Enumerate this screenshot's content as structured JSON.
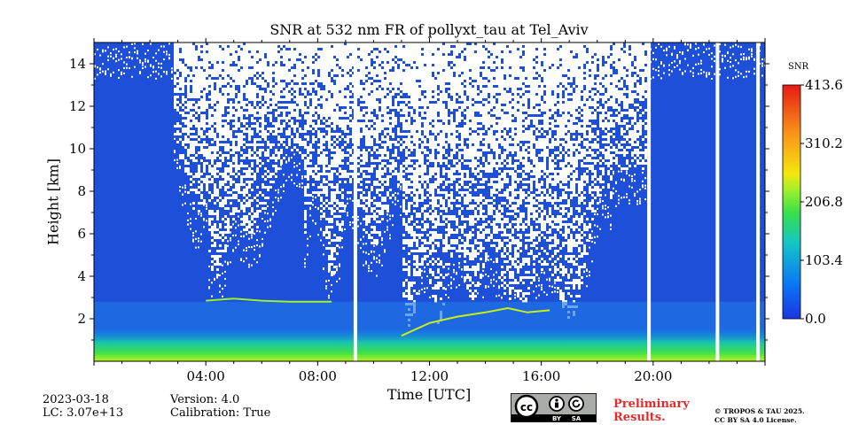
{
  "chart_data": {
    "type": "heatmap",
    "title": "SNR at 532 nm FR of pollyxt_tau at Tel_Aviv",
    "xlabel": "Time [UTC]",
    "ylabel": "Height [km]",
    "x_range_hours": [
      0,
      24
    ],
    "y_range_km": [
      0,
      15
    ],
    "x_ticks": [
      {
        "value": 4,
        "label": "04:00"
      },
      {
        "value": 8,
        "label": "08:00"
      },
      {
        "value": 12,
        "label": "12:00"
      },
      {
        "value": 16,
        "label": "16:00"
      },
      {
        "value": 20,
        "label": "20:00"
      }
    ],
    "y_ticks": [
      {
        "value": 2,
        "label": "2"
      },
      {
        "value": 4,
        "label": "4"
      },
      {
        "value": 6,
        "label": "6"
      },
      {
        "value": 8,
        "label": "8"
      },
      {
        "value": 10,
        "label": "10"
      },
      {
        "value": 12,
        "label": "12"
      },
      {
        "value": 14,
        "label": "14"
      }
    ],
    "colorbar": {
      "label": "SNR",
      "range": [
        0.0,
        413.6
      ],
      "ticks": [
        "0.0",
        "103.4",
        "206.8",
        "310.2",
        "413.6"
      ],
      "colors": [
        "#1e3bd9",
        "#0b7ff0",
        "#17c7a8",
        "#3fe04a",
        "#b9f21c",
        "#f6e30c",
        "#f7901b",
        "#e12d15"
      ]
    },
    "data_gaps_hours": [
      9.35,
      19.85,
      22.3,
      23.75
    ],
    "aerosol_layer_top_km": 2.8
  },
  "meta": {
    "date": "2023-03-18",
    "lc": "LC: 3.07e+13",
    "version": "Version: 4.0",
    "calibration": "Calibration: True",
    "preliminary_line1": "Preliminary",
    "preliminary_line2": "Results.",
    "copyright_line1": "© TROPOS & TAU 2025.",
    "copyright_line2": "CC BY SA 4.0 License.",
    "cc_labels": [
      "cc",
      "BY",
      "SA"
    ]
  }
}
